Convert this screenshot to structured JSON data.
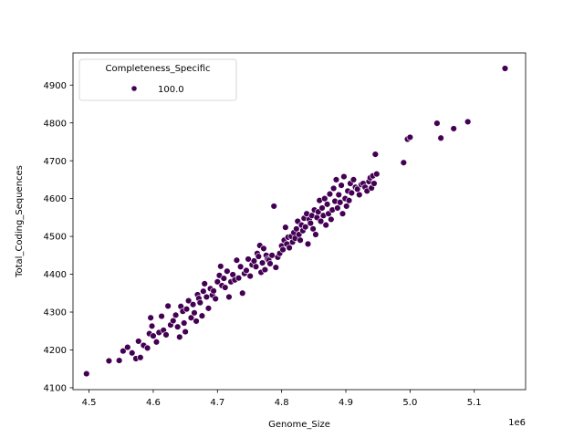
{
  "chart_data": {
    "type": "scatter",
    "xlabel": "Genome_Size",
    "ylabel": "Total_Coding_Sequences",
    "x_offset_label": "1e6",
    "xlim": [
      4.475,
      5.18
    ],
    "ylim": [
      4095,
      4985
    ],
    "xticks": [
      4.5,
      4.6,
      4.7,
      4.8,
      4.9,
      5.0,
      5.1
    ],
    "xtick_labels": [
      "4.5",
      "4.6",
      "4.7",
      "4.8",
      "4.9",
      "5.0",
      "5.1"
    ],
    "yticks": [
      4100,
      4200,
      4300,
      4400,
      4500,
      4600,
      4700,
      4800,
      4900
    ],
    "ytick_labels": [
      "4100",
      "4200",
      "4300",
      "4400",
      "4500",
      "4600",
      "4700",
      "4800",
      "4900"
    ],
    "grid": false,
    "legend": {
      "title": "Completeness_Specific",
      "placement": "upper-left",
      "entries": [
        {
          "label": "100.0",
          "color": "#440154"
        }
      ]
    },
    "series": [
      {
        "name": "100.0",
        "color": "#440154",
        "points": [
          [
            4.496,
            4137
          ],
          [
            4.531,
            4171
          ],
          [
            4.547,
            4172
          ],
          [
            4.553,
            4197
          ],
          [
            4.56,
            4207
          ],
          [
            4.567,
            4192
          ],
          [
            4.573,
            4177
          ],
          [
            4.577,
            4223
          ],
          [
            4.58,
            4180
          ],
          [
            4.585,
            4212
          ],
          [
            4.591,
            4205
          ],
          [
            4.594,
            4243
          ],
          [
            4.596,
            4285
          ],
          [
            4.598,
            4263
          ],
          [
            4.6,
            4237
          ],
          [
            4.605,
            4221
          ],
          [
            4.609,
            4246
          ],
          [
            4.613,
            4289
          ],
          [
            4.616,
            4252
          ],
          [
            4.62,
            4240
          ],
          [
            4.623,
            4316
          ],
          [
            4.627,
            4266
          ],
          [
            4.631,
            4277
          ],
          [
            4.635,
            4292
          ],
          [
            4.638,
            4261
          ],
          [
            4.641,
            4234
          ],
          [
            4.643,
            4315
          ],
          [
            4.646,
            4302
          ],
          [
            4.648,
            4271
          ],
          [
            4.65,
            4248
          ],
          [
            4.652,
            4308
          ],
          [
            4.655,
            4330
          ],
          [
            4.659,
            4285
          ],
          [
            4.662,
            4320
          ],
          [
            4.664,
            4298
          ],
          [
            4.667,
            4276
          ],
          [
            4.669,
            4346
          ],
          [
            4.671,
            4336
          ],
          [
            4.673,
            4325
          ],
          [
            4.676,
            4290
          ],
          [
            4.678,
            4355
          ],
          [
            4.68,
            4375
          ],
          [
            4.683,
            4340
          ],
          [
            4.686,
            4310
          ],
          [
            4.689,
            4362
          ],
          [
            4.692,
            4345
          ],
          [
            4.694,
            4356
          ],
          [
            4.697,
            4335
          ],
          [
            4.7,
            4380
          ],
          [
            4.703,
            4397
          ],
          [
            4.705,
            4421
          ],
          [
            4.707,
            4370
          ],
          [
            4.71,
            4389
          ],
          [
            4.712,
            4365
          ],
          [
            4.715,
            4408
          ],
          [
            4.718,
            4340
          ],
          [
            4.721,
            4380
          ],
          [
            4.724,
            4399
          ],
          [
            4.727,
            4385
          ],
          [
            4.73,
            4437
          ],
          [
            4.733,
            4390
          ],
          [
            4.736,
            4420
          ],
          [
            4.739,
            4350
          ],
          [
            4.742,
            4402
          ],
          [
            4.745,
            4410
          ],
          [
            4.748,
            4440
          ],
          [
            4.751,
            4395
          ],
          [
            4.754,
            4425
          ],
          [
            4.757,
            4435
          ],
          [
            4.76,
            4420
          ],
          [
            4.762,
            4455
          ],
          [
            4.764,
            4447
          ],
          [
            4.766,
            4476
          ],
          [
            4.768,
            4405
          ],
          [
            4.77,
            4430
          ],
          [
            4.772,
            4468
          ],
          [
            4.774,
            4412
          ],
          [
            4.776,
            4450
          ],
          [
            4.778,
            4440
          ],
          [
            4.78,
            4437
          ],
          [
            4.782,
            4428
          ],
          [
            4.785,
            4450
          ],
          [
            4.788,
            4580
          ],
          [
            4.791,
            4418
          ],
          [
            4.794,
            4445
          ],
          [
            4.797,
            4455
          ],
          [
            4.8,
            4475
          ],
          [
            4.802,
            4465
          ],
          [
            4.804,
            4490
          ],
          [
            4.806,
            4524
          ],
          [
            4.808,
            4480
          ],
          [
            4.81,
            4498
          ],
          [
            4.812,
            4470
          ],
          [
            4.815,
            4500
          ],
          [
            4.817,
            4485
          ],
          [
            4.819,
            4510
          ],
          [
            4.821,
            4495
          ],
          [
            4.823,
            4520
          ],
          [
            4.825,
            4540
          ],
          [
            4.827,
            4505
          ],
          [
            4.829,
            4490
          ],
          [
            4.831,
            4530
          ],
          [
            4.833,
            4515
          ],
          [
            4.835,
            4548
          ],
          [
            4.837,
            4525
          ],
          [
            4.839,
            4560
          ],
          [
            4.841,
            4480
          ],
          [
            4.843,
            4545
          ],
          [
            4.845,
            4535
          ],
          [
            4.847,
            4555
          ],
          [
            4.849,
            4520
          ],
          [
            4.851,
            4570
          ],
          [
            4.853,
            4505
          ],
          [
            4.855,
            4550
          ],
          [
            4.857,
            4565
          ],
          [
            4.859,
            4595
          ],
          [
            4.861,
            4540
          ],
          [
            4.863,
            4575
          ],
          [
            4.865,
            4555
          ],
          [
            4.867,
            4600
          ],
          [
            4.869,
            4530
          ],
          [
            4.871,
            4585
          ],
          [
            4.873,
            4560
          ],
          [
            4.875,
            4612
          ],
          [
            4.877,
            4545
          ],
          [
            4.879,
            4570
          ],
          [
            4.881,
            4627
          ],
          [
            4.883,
            4593
          ],
          [
            4.885,
            4650
          ],
          [
            4.887,
            4575
          ],
          [
            4.889,
            4610
          ],
          [
            4.891,
            4590
          ],
          [
            4.893,
            4635
          ],
          [
            4.895,
            4560
          ],
          [
            4.897,
            4658
          ],
          [
            4.899,
            4600
          ],
          [
            4.901,
            4580
          ],
          [
            4.903,
            4620
          ],
          [
            4.905,
            4595
          ],
          [
            4.907,
            4640
          ],
          [
            4.909,
            4615
          ],
          [
            4.912,
            4650
          ],
          [
            4.915,
            4630
          ],
          [
            4.918,
            4625
          ],
          [
            4.921,
            4610
          ],
          [
            4.924,
            4637
          ],
          [
            4.927,
            4640
          ],
          [
            4.93,
            4630
          ],
          [
            4.933,
            4620
          ],
          [
            4.936,
            4645
          ],
          [
            4.938,
            4655
          ],
          [
            4.94,
            4628
          ],
          [
            4.942,
            4660
          ],
          [
            4.944,
            4640
          ],
          [
            4.946,
            4717
          ],
          [
            4.948,
            4665
          ],
          [
            4.99,
            4695
          ],
          [
            4.996,
            4757
          ],
          [
            5.0,
            4762
          ],
          [
            5.042,
            4799
          ],
          [
            5.048,
            4760
          ],
          [
            5.068,
            4785
          ],
          [
            5.09,
            4803
          ],
          [
            5.148,
            4944
          ]
        ]
      }
    ]
  }
}
